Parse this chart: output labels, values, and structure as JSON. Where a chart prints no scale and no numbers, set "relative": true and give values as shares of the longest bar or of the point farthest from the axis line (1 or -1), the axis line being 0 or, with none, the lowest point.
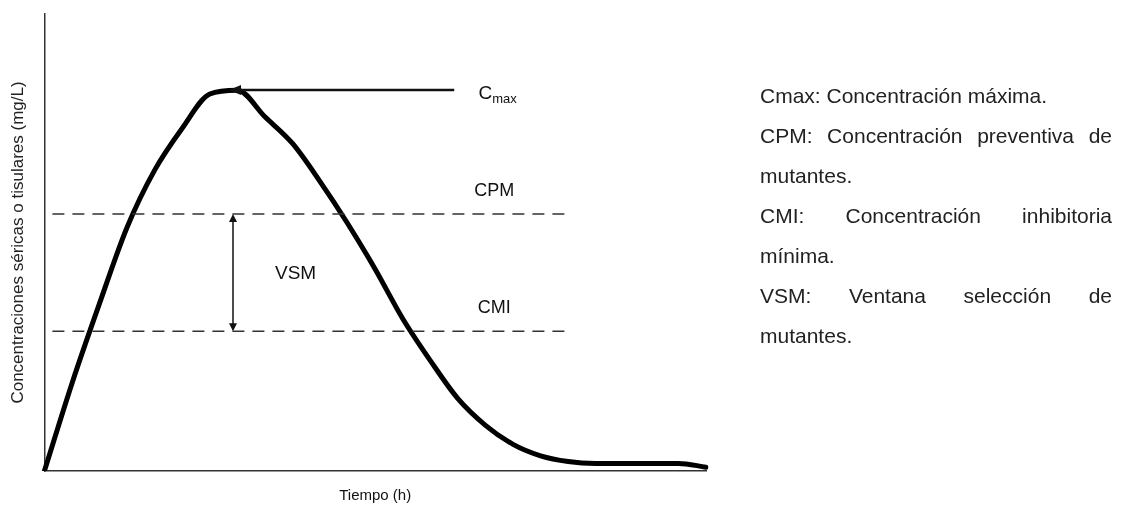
{
  "chart_data": {
    "type": "line",
    "relative": true,
    "xlabel": "Tiempo (h)",
    "ylabel": "Concentraciones séricas o tisulares (mg/L)",
    "categories": [
      null,
      null,
      null,
      null,
      null,
      null,
      null,
      null,
      null,
      null,
      null,
      null,
      null,
      null,
      null,
      null,
      null,
      null,
      null,
      null,
      null,
      null,
      null,
      null,
      null
    ],
    "series": [
      {
        "color": "#000000",
        "values": [
          0.0,
          0.23,
          0.44,
          0.64,
          0.79,
          0.9,
          0.99,
          1.0,
          0.93,
          0.86,
          0.76,
          0.65,
          0.53,
          0.4,
          0.29,
          0.19,
          0.12,
          0.07,
          0.04,
          0.025,
          0.02,
          0.02,
          0.02,
          0.02,
          0.01
        ]
      }
    ],
    "ref_lines": [
      {
        "axis": "y",
        "value": 0.675,
        "label": "CPM",
        "color": "#333333",
        "line_style": "dashed"
      },
      {
        "axis": "y",
        "value": 0.367,
        "label": "CMI",
        "color": "#333333",
        "line_style": "dashed"
      }
    ],
    "annotations": [
      "C$_{max}$",
      "VSM",
      "Cmax: Concentración máxima.",
      "CPM: Concentración preventiva de mutantes.",
      "CMI: Concentración inhibitoria mínima.",
      "VSM: Ventana selección de mutantes."
    ],
    "legend": false,
    "grid": false,
    "tick_labels": false,
    "marker": "none",
    "line_style": "solid"
  }
}
